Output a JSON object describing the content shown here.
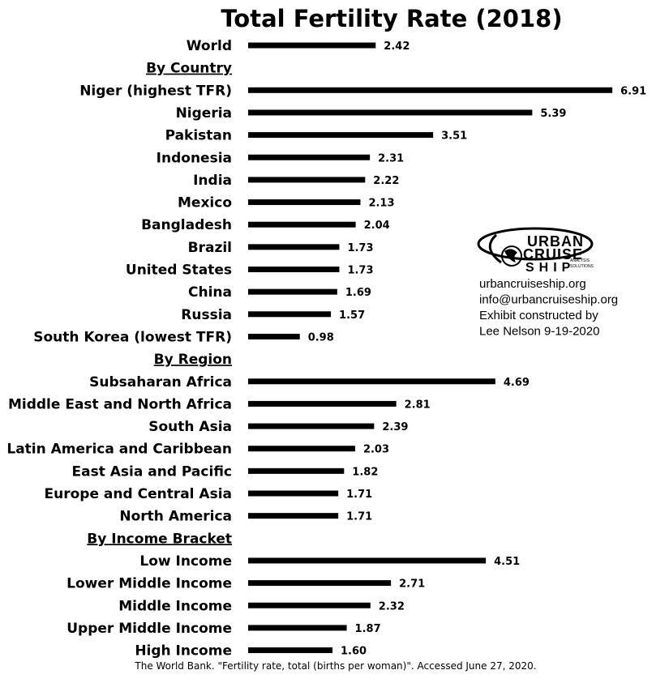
{
  "chart_data": {
    "type": "bar",
    "orientation": "horizontal",
    "title": "Total Fertility Rate (2018)",
    "rows": [
      {
        "label": "World",
        "value": 2.42,
        "value_label": "2.42"
      },
      {
        "label": "By Country",
        "header": true
      },
      {
        "label": "Niger (highest TFR)",
        "value": 6.91,
        "value_label": "6.91"
      },
      {
        "label": "Nigeria",
        "value": 5.39,
        "value_label": "5.39"
      },
      {
        "label": "Pakistan",
        "value": 3.51,
        "value_label": "3.51"
      },
      {
        "label": "Indonesia",
        "value": 2.31,
        "value_label": "2.31"
      },
      {
        "label": "India",
        "value": 2.22,
        "value_label": "2.22"
      },
      {
        "label": "Mexico",
        "value": 2.13,
        "value_label": "2.13"
      },
      {
        "label": "Bangladesh",
        "value": 2.04,
        "value_label": "2.04"
      },
      {
        "label": "Brazil",
        "value": 1.73,
        "value_label": "1.73"
      },
      {
        "label": "United States",
        "value": 1.73,
        "value_label": "1.73"
      },
      {
        "label": "China",
        "value": 1.69,
        "value_label": "1.69"
      },
      {
        "label": "Russia",
        "value": 1.57,
        "value_label": "1.57"
      },
      {
        "label": "South Korea (lowest TFR)",
        "value": 0.98,
        "value_label": "0.98"
      },
      {
        "label": "By Region",
        "header": true
      },
      {
        "label": "Subsaharan Africa",
        "value": 4.69,
        "value_label": "4.69"
      },
      {
        "label": "Middle East and North Africa",
        "value": 2.81,
        "value_label": "2.81"
      },
      {
        "label": "South Asia",
        "value": 2.39,
        "value_label": "2.39"
      },
      {
        "label": "Latin America and Caribbean",
        "value": 2.03,
        "value_label": "2.03"
      },
      {
        "label": "East Asia and Pacific",
        "value": 1.82,
        "value_label": "1.82"
      },
      {
        "label": "Europe and Central Asia",
        "value": 1.71,
        "value_label": "1.71"
      },
      {
        "label": "North America",
        "value": 1.71,
        "value_label": "1.71"
      },
      {
        "label": "By Income Bracket",
        "header": true
      },
      {
        "label": "Low Income",
        "value": 4.51,
        "value_label": "4.51"
      },
      {
        "label": "Lower Middle Income",
        "value": 2.71,
        "value_label": "2.71"
      },
      {
        "label": "Middle Income",
        "value": 2.32,
        "value_label": "2.32"
      },
      {
        "label": "Upper Middle Income",
        "value": 1.87,
        "value_label": "1.87"
      },
      {
        "label": "High Income",
        "value": 1.6,
        "value_label": "1.60"
      }
    ],
    "source": "The World Bank. \"Fertility rate, total (births per woman)\". Accessed June 27, 2020.",
    "grid": false,
    "bar_color": "#000000"
  },
  "info_block": {
    "logo_words": [
      "URBAN",
      "CRUISE",
      "SHIP"
    ],
    "logo_small": [
      "ANALYSIS",
      "SOLUTIONS"
    ],
    "lines": [
      "urbancruiseship.org",
      "info@urbancruiseship.org",
      "Exhibit constructed by",
      "Lee Nelson 9-19-2020"
    ]
  }
}
